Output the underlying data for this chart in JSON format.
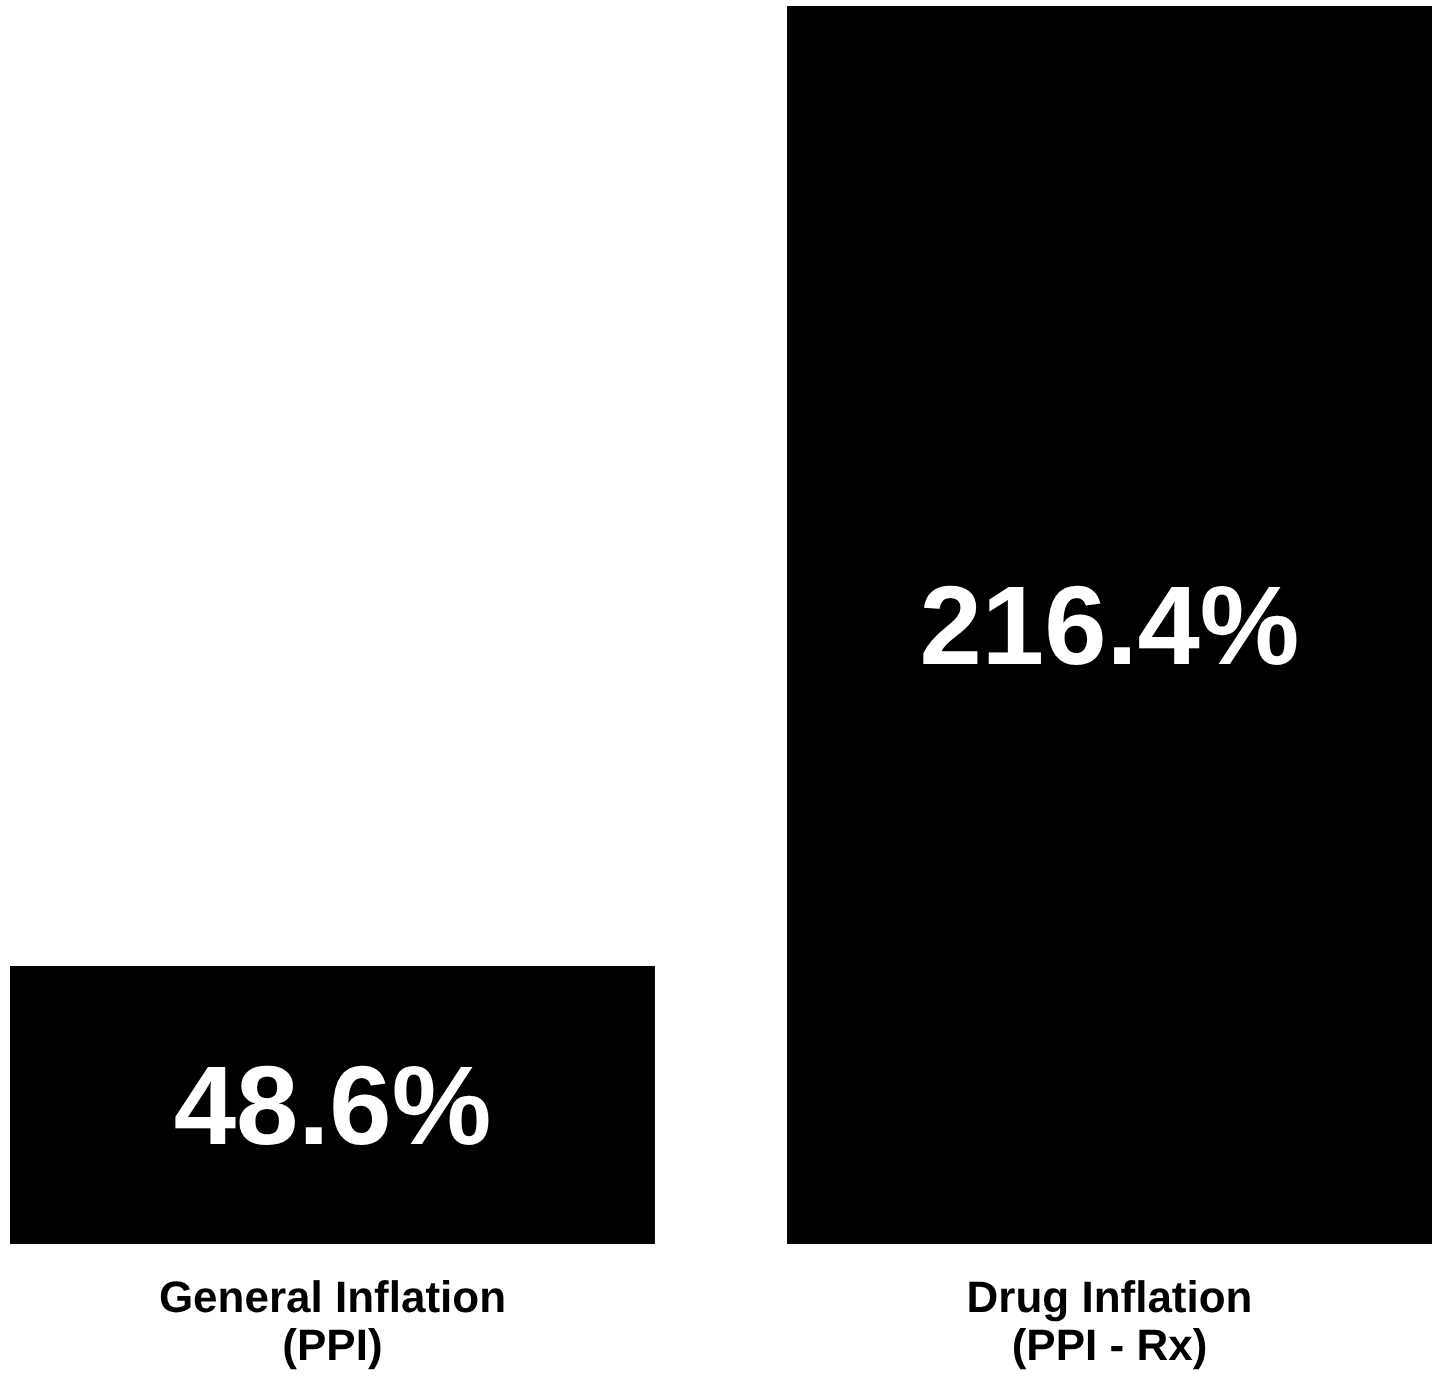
{
  "chart_data": {
    "type": "bar",
    "categories": [
      "General Inflation\n(PPI)",
      "Drug Inflation\n(PPI -  Rx)"
    ],
    "values": [
      48.6,
      216.4
    ],
    "color": "#000000",
    "data_labels": true,
    "value_labels": [
      "48.6%",
      "216.4%"
    ]
  }
}
